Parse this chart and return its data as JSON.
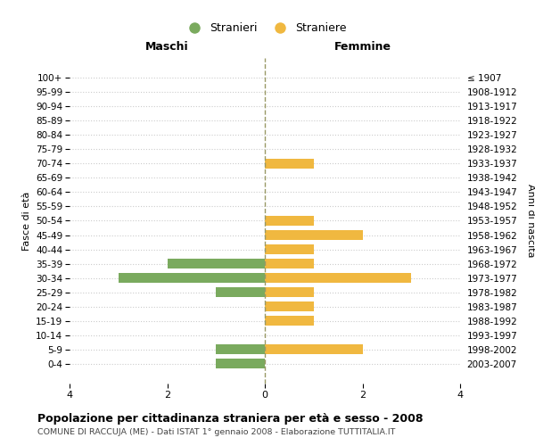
{
  "age_groups": [
    "100+",
    "95-99",
    "90-94",
    "85-89",
    "80-84",
    "75-79",
    "70-74",
    "65-69",
    "60-64",
    "55-59",
    "50-54",
    "45-49",
    "40-44",
    "35-39",
    "30-34",
    "25-29",
    "20-24",
    "15-19",
    "10-14",
    "5-9",
    "0-4"
  ],
  "birth_years": [
    "≤ 1907",
    "1908-1912",
    "1913-1917",
    "1918-1922",
    "1923-1927",
    "1928-1932",
    "1933-1937",
    "1938-1942",
    "1943-1947",
    "1948-1952",
    "1953-1957",
    "1958-1962",
    "1963-1967",
    "1968-1972",
    "1973-1977",
    "1978-1982",
    "1983-1987",
    "1988-1992",
    "1993-1997",
    "1998-2002",
    "2003-2007"
  ],
  "stranieri": [
    0,
    0,
    0,
    0,
    0,
    0,
    0,
    0,
    0,
    0,
    0,
    0,
    0,
    2,
    3,
    1,
    0,
    0,
    0,
    1,
    1
  ],
  "straniere": [
    0,
    0,
    0,
    0,
    0,
    0,
    1,
    0,
    0,
    0,
    1,
    2,
    1,
    1,
    3,
    1,
    1,
    1,
    0,
    2,
    0
  ],
  "color_stranieri": "#7aaa5e",
  "color_straniere": "#f0b840",
  "title": "Popolazione per cittadinanza straniera per età e sesso - 2008",
  "subtitle": "COMUNE DI RACCUJA (ME) - Dati ISTAT 1° gennaio 2008 - Elaborazione TUTTITALIA.IT",
  "xlabel_left": "Maschi",
  "xlabel_right": "Femmine",
  "ylabel_left": "Fasce di età",
  "ylabel_right": "Anni di nascita",
  "legend_stranieri": "Stranieri",
  "legend_straniere": "Straniere",
  "xlim": 4,
  "bg_color": "#ffffff",
  "grid_color": "#cccccc",
  "centerline_color": "#999966"
}
